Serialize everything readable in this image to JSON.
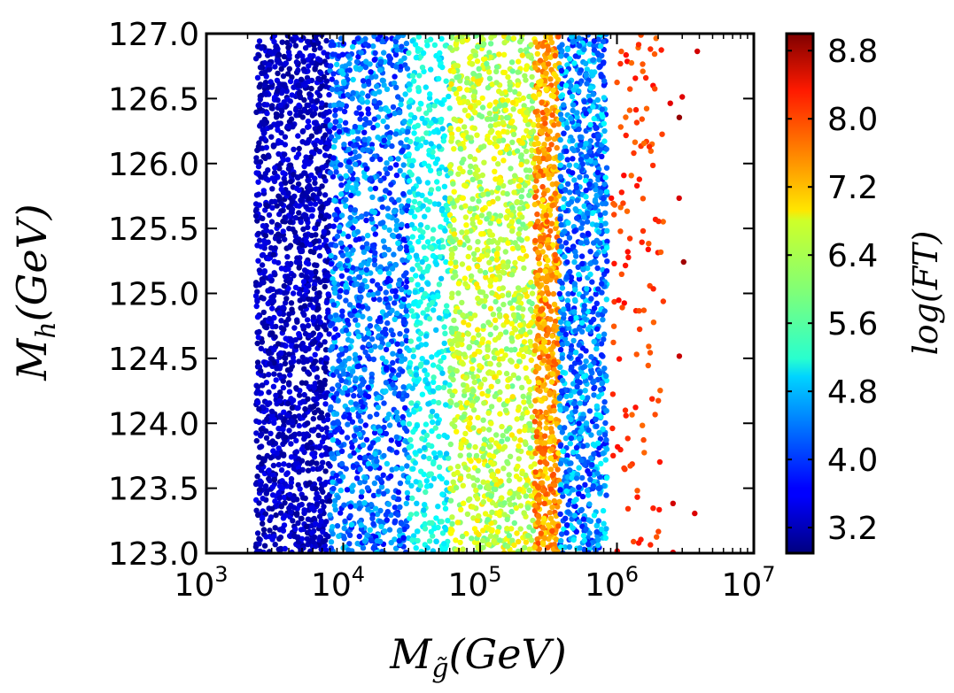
{
  "chart_data": {
    "type": "scatter",
    "x_scale": "log",
    "xlim_exp": [
      3,
      7
    ],
    "ylim": [
      123.0,
      127.0
    ],
    "x_ticks": [
      {
        "base": "10",
        "exp": "3"
      },
      {
        "base": "10",
        "exp": "4"
      },
      {
        "base": "10",
        "exp": "5"
      },
      {
        "base": "10",
        "exp": "6"
      },
      {
        "base": "10",
        "exp": "7"
      }
    ],
    "y_ticks": [
      "123.0",
      "123.5",
      "124.0",
      "124.5",
      "125.0",
      "125.5",
      "126.0",
      "126.5",
      "127.0"
    ],
    "xlabel": {
      "main": "M",
      "sub": "g̃",
      "rest": "(GeV)"
    },
    "ylabel": {
      "main": "M",
      "sub": "h",
      "rest": "(GeV)"
    },
    "colorbar": {
      "label": "log(FT)",
      "range": [
        2.9,
        9.0
      ],
      "ticks": [
        "3.2",
        "4.0",
        "4.8",
        "5.6",
        "6.4",
        "7.2",
        "8.0",
        "8.8"
      ],
      "colormap": "jet"
    },
    "regions": [
      {
        "x_range": [
          2300,
          8000
        ],
        "color_value_range": [
          3.0,
          3.6
        ]
      },
      {
        "x_range": [
          8000,
          30000
        ],
        "color_value_range": [
          3.6,
          5.0
        ]
      },
      {
        "x_range": [
          30000,
          60000
        ],
        "color_value_range": [
          4.8,
          5.6
        ]
      },
      {
        "x_range": [
          60000,
          250000
        ],
        "color_value_range": [
          5.8,
          6.9
        ]
      },
      {
        "x_range": [
          250000,
          380000
        ],
        "color_value_range": [
          6.8,
          7.8
        ]
      },
      {
        "x_range": [
          380000,
          850000
        ],
        "color_value_range": [
          3.7,
          5.2
        ]
      },
      {
        "x_range": [
          900000,
          2200000
        ],
        "color_value_range": [
          7.6,
          8.2
        ]
      },
      {
        "x_range": [
          2300000,
          4200000
        ],
        "color_value_range": [
          8.4,
          9.0
        ]
      }
    ]
  }
}
